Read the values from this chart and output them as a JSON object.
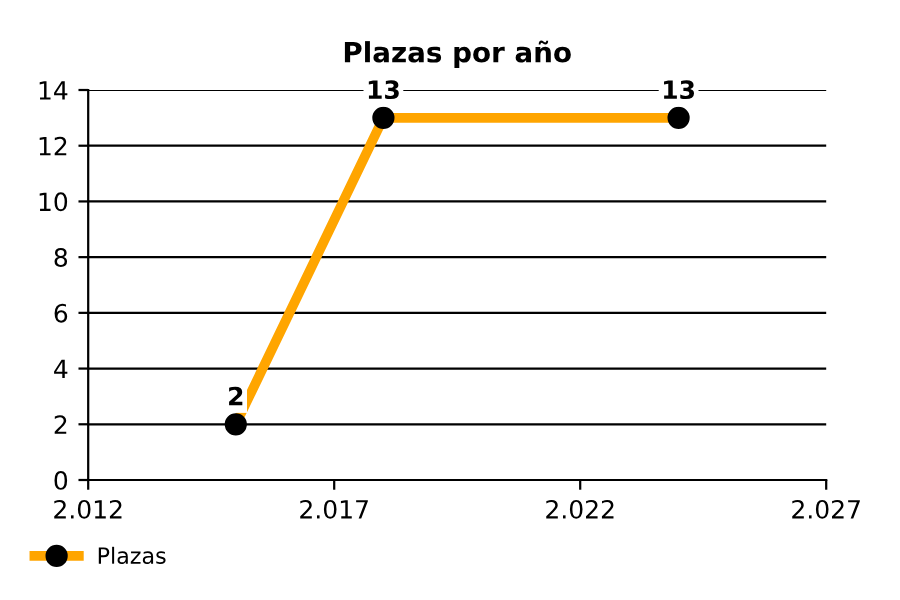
{
  "chart_data": {
    "type": "line",
    "title": "Plazas por año",
    "x": [
      2015,
      2018,
      2024
    ],
    "series": [
      {
        "name": "Plazas",
        "color": "#ffa500",
        "values": [
          2,
          13,
          13
        ]
      }
    ],
    "xlim": [
      2012,
      2027
    ],
    "xticks": [
      {
        "value": 2012,
        "label": "2.012"
      },
      {
        "value": 2017,
        "label": "2.017"
      },
      {
        "value": 2022,
        "label": "2.022"
      },
      {
        "value": 2027,
        "label": "2.027"
      }
    ],
    "ylim": [
      0,
      14
    ],
    "yticks": [
      0,
      2,
      4,
      6,
      8,
      10,
      12,
      14
    ],
    "grid": "y",
    "legend": "bottom left",
    "marker": "circle",
    "line_style": "solid",
    "data_labels": true
  }
}
